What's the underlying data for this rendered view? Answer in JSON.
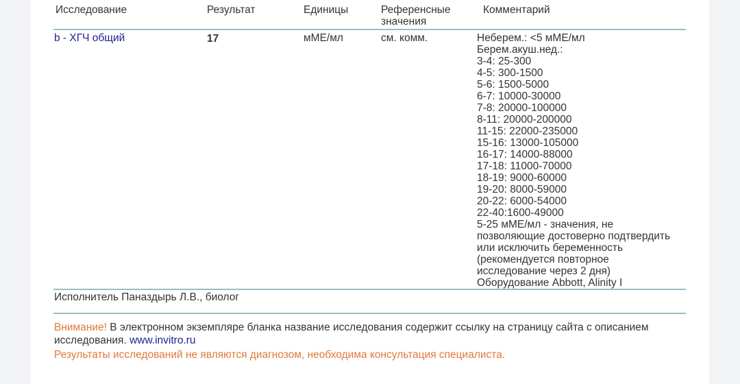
{
  "table": {
    "headers": {
      "test": "Исследование",
      "result": "Результат",
      "units": "Единицы",
      "reference_line1": "Референсные",
      "reference_line2": "значения",
      "comment": "Комментарий"
    },
    "rows": [
      {
        "test": "b - ХГЧ общий",
        "result": "17",
        "units": "мМЕ/мл",
        "reference": "см. комм.",
        "comment": [
          "Неберем.: <5 мМЕ/мл",
          "Берем.акуш.нед.:",
          "3-4: 25-300",
          "4-5: 300-1500",
          "5-6: 1500-5000",
          "6-7: 10000-30000",
          "7-8: 20000-100000",
          "8-11: 20000-200000",
          "11-15: 22000-235000",
          "15-16: 13000-105000",
          "16-17: 14000-88000",
          "17-18: 11000-70000",
          "18-19: 9000-60000",
          "19-20: 8000-59000",
          "20-22: 6000-54000",
          "22-40:1600-49000",
          "5-25 мМЕ/мл - значения, не",
          "позволяющие достоверно подтвердить",
          "или исключить беременность",
          "(рекомендуется повторное",
          "исследование через 2 дня)",
          "Оборудование Abbott, Alinity I"
        ]
      }
    ]
  },
  "performer": "Исполнитель Паназдырь Л.В., биолог",
  "notice": {
    "warning_label": "Внимание!",
    "text_line1": " В электронном экземпляре бланка название исследования содержит ссылку на страницу сайта с описанием",
    "text_line2": "исследования. ",
    "link": "www.invitro.ru",
    "disclaimer": "Результаты исследований не являются диагнозом, необходима консультация специалиста."
  },
  "colors": {
    "link": "#1f1f8f",
    "warning": "#e0783a",
    "rule": "#9bbcc4"
  }
}
